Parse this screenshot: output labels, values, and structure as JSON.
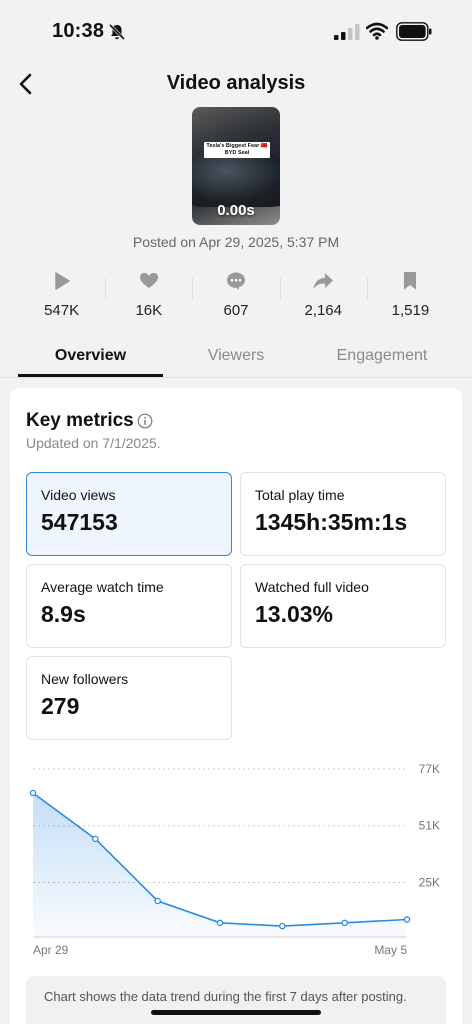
{
  "status": {
    "time": "10:38"
  },
  "nav": {
    "title": "Video analysis"
  },
  "video": {
    "caption": "Tesla's Biggest Fear 🇨🇳 BYD Seal",
    "duration": "0.00s",
    "posted": "Posted on Apr 29, 2025, 5:37 PM"
  },
  "stats": [
    {
      "icon": "play-icon",
      "value": "547K"
    },
    {
      "icon": "heart-icon",
      "value": "16K"
    },
    {
      "icon": "comment-icon",
      "value": "607"
    },
    {
      "icon": "share-icon",
      "value": "2,164"
    },
    {
      "icon": "bookmark-icon",
      "value": "1,519"
    }
  ],
  "tabs": [
    "Overview",
    "Viewers",
    "Engagement"
  ],
  "key_metrics": {
    "title": "Key metrics",
    "updated": "Updated on 7/1/2025.",
    "items": [
      {
        "label": "Video views",
        "value": "547153"
      },
      {
        "label": "Total play time",
        "value": "1345h:35m:1s"
      },
      {
        "label": "Average watch time",
        "value": "8.9s"
      },
      {
        "label": "Watched full video",
        "value": "13.03%"
      },
      {
        "label": "New followers",
        "value": "279"
      }
    ]
  },
  "colors": {
    "accent": "#2d8ae0",
    "selected_bg": "#eef5fd"
  },
  "chart_data": {
    "type": "area",
    "x": [
      "Apr 29",
      "Apr 30",
      "May 1",
      "May 2",
      "May 3",
      "May 4",
      "May 5"
    ],
    "x_tick_labels": [
      "Apr 29",
      "May 5"
    ],
    "values": [
      66000,
      45000,
      16500,
      6500,
      5000,
      6500,
      8000
    ],
    "y_ticks": [
      25000,
      51000,
      77000
    ],
    "y_tick_labels": [
      "25K",
      "51K",
      "77K"
    ],
    "ylim": [
      0,
      77000
    ],
    "grid": true
  },
  "chart_note": "Chart shows the data trend during the first 7 days after posting."
}
